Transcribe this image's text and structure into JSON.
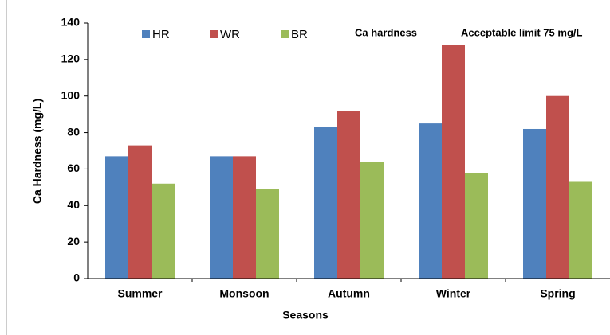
{
  "chart_data": {
    "type": "bar",
    "x_label": "Seasons",
    "y_label": "Ca Hardness (mg/L)",
    "annotations": [
      "Ca hardness",
      "Acceptable  limit 75 mg/L"
    ],
    "categories": [
      "Summer",
      "Monsoon",
      "Autumn",
      "Winter",
      "Spring"
    ],
    "series": [
      {
        "name": "HR",
        "color": "#4f81bd",
        "values": [
          67,
          67,
          83,
          85,
          82
        ]
      },
      {
        "name": "WR",
        "color": "#c0504d",
        "values": [
          73,
          67,
          92,
          128,
          100
        ]
      },
      {
        "name": "BR",
        "color": "#9bbb59",
        "values": [
          52,
          49,
          64,
          58,
          53
        ]
      }
    ],
    "ylim": [
      0,
      140
    ],
    "yticks": [
      0,
      20,
      40,
      60,
      80,
      100,
      120,
      140
    ],
    "grid": false
  }
}
